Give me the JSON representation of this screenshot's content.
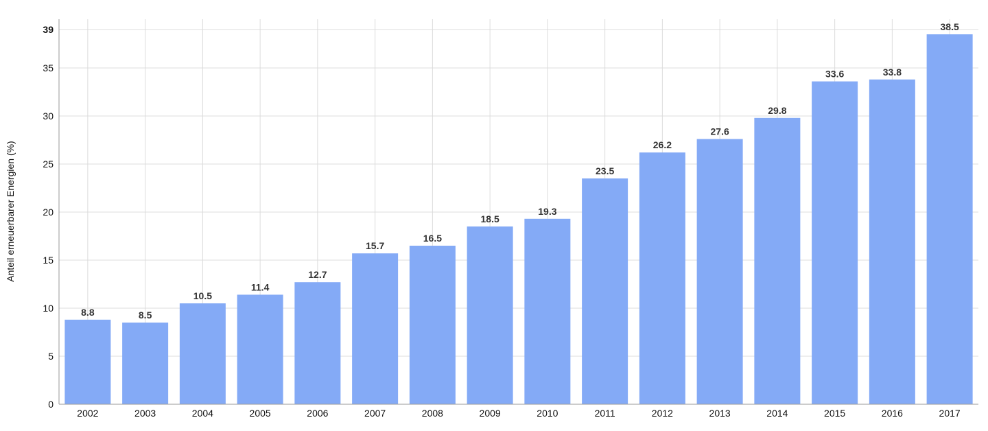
{
  "chart_data": {
    "type": "bar",
    "title": "",
    "xlabel": "",
    "ylabel": "Anteil erneuerbarer Energien (%)",
    "categories": [
      "2002",
      "2003",
      "2004",
      "2005",
      "2006",
      "2007",
      "2008",
      "2009",
      "2010",
      "2011",
      "2012",
      "2013",
      "2014",
      "2015",
      "2016",
      "2017"
    ],
    "values": [
      8.8,
      8.5,
      10.5,
      11.4,
      12.7,
      15.7,
      16.5,
      18.5,
      19.3,
      23.5,
      26.2,
      27.6,
      29.8,
      33.6,
      33.8,
      38.5
    ],
    "data_labels": [
      "8.8",
      "8.5",
      "10.5",
      "11.4",
      "12.7",
      "15.7",
      "16.5",
      "18.5",
      "19.3",
      "23.5",
      "26.2",
      "27.6",
      "29.8",
      "33.6",
      "33.8",
      "38.5"
    ],
    "ylim": [
      0,
      39
    ],
    "y_ticks": [
      0,
      5,
      10,
      15,
      20,
      25,
      30,
      35,
      39
    ],
    "y_tick_labels": [
      "0",
      "5",
      "10",
      "15",
      "20",
      "25",
      "30",
      "35",
      "39"
    ],
    "grid": true,
    "legend": "none",
    "bar_color": "#84aaf6"
  }
}
